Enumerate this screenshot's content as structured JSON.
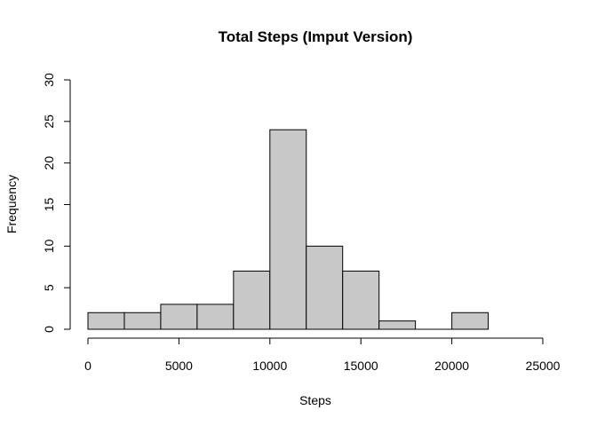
{
  "chart_data": {
    "type": "bar",
    "title": "Total Steps (Imput Version)",
    "xlabel": "Steps",
    "ylabel": "Frequency",
    "bins": [
      {
        "start": 0,
        "end": 2000,
        "count": 2
      },
      {
        "start": 2000,
        "end": 4000,
        "count": 2
      },
      {
        "start": 4000,
        "end": 6000,
        "count": 3
      },
      {
        "start": 6000,
        "end": 8000,
        "count": 3
      },
      {
        "start": 8000,
        "end": 10000,
        "count": 7
      },
      {
        "start": 10000,
        "end": 12000,
        "count": 24
      },
      {
        "start": 12000,
        "end": 14000,
        "count": 10
      },
      {
        "start": 14000,
        "end": 16000,
        "count": 7
      },
      {
        "start": 16000,
        "end": 18000,
        "count": 1
      },
      {
        "start": 18000,
        "end": 20000,
        "count": 0
      },
      {
        "start": 20000,
        "end": 22000,
        "count": 2
      }
    ],
    "xlim": [
      0,
      25000
    ],
    "ylim": [
      0,
      30
    ],
    "xticks": [
      0,
      5000,
      10000,
      15000,
      20000,
      25000
    ],
    "yticks": [
      0,
      5,
      10,
      15,
      20,
      25,
      30
    ],
    "bar_color": "#c8c8c8",
    "border_color": "#000000",
    "grid": false
  }
}
